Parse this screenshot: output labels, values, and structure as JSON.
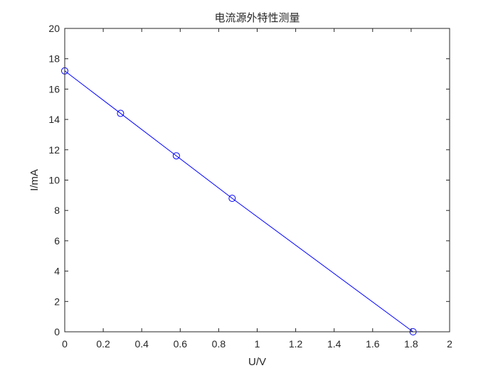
{
  "chart_data": {
    "type": "line",
    "title": "电流源外特性测量",
    "xlabel": "U/V",
    "ylabel": "I/mA",
    "xlim": [
      0,
      2
    ],
    "ylim": [
      0,
      20
    ],
    "xticks": [
      0,
      0.2,
      0.4,
      0.6,
      0.8,
      1,
      1.2,
      1.4,
      1.6,
      1.8,
      2
    ],
    "xtick_labels": [
      "0",
      "0.2",
      "0.4",
      "0.6",
      "0.8",
      "1",
      "1.2",
      "1.4",
      "1.6",
      "1.8",
      "2"
    ],
    "yticks": [
      0,
      2,
      4,
      6,
      8,
      10,
      12,
      14,
      16,
      18,
      20
    ],
    "ytick_labels": [
      "0",
      "2",
      "4",
      "6",
      "8",
      "10",
      "12",
      "14",
      "16",
      "18",
      "20"
    ],
    "grid": false,
    "series": [
      {
        "color": "#0000ff",
        "marker": "circle",
        "x": [
          0,
          0.29,
          0.58,
          0.87,
          1.81
        ],
        "y": [
          17.2,
          14.4,
          11.6,
          8.8,
          0
        ]
      }
    ]
  }
}
